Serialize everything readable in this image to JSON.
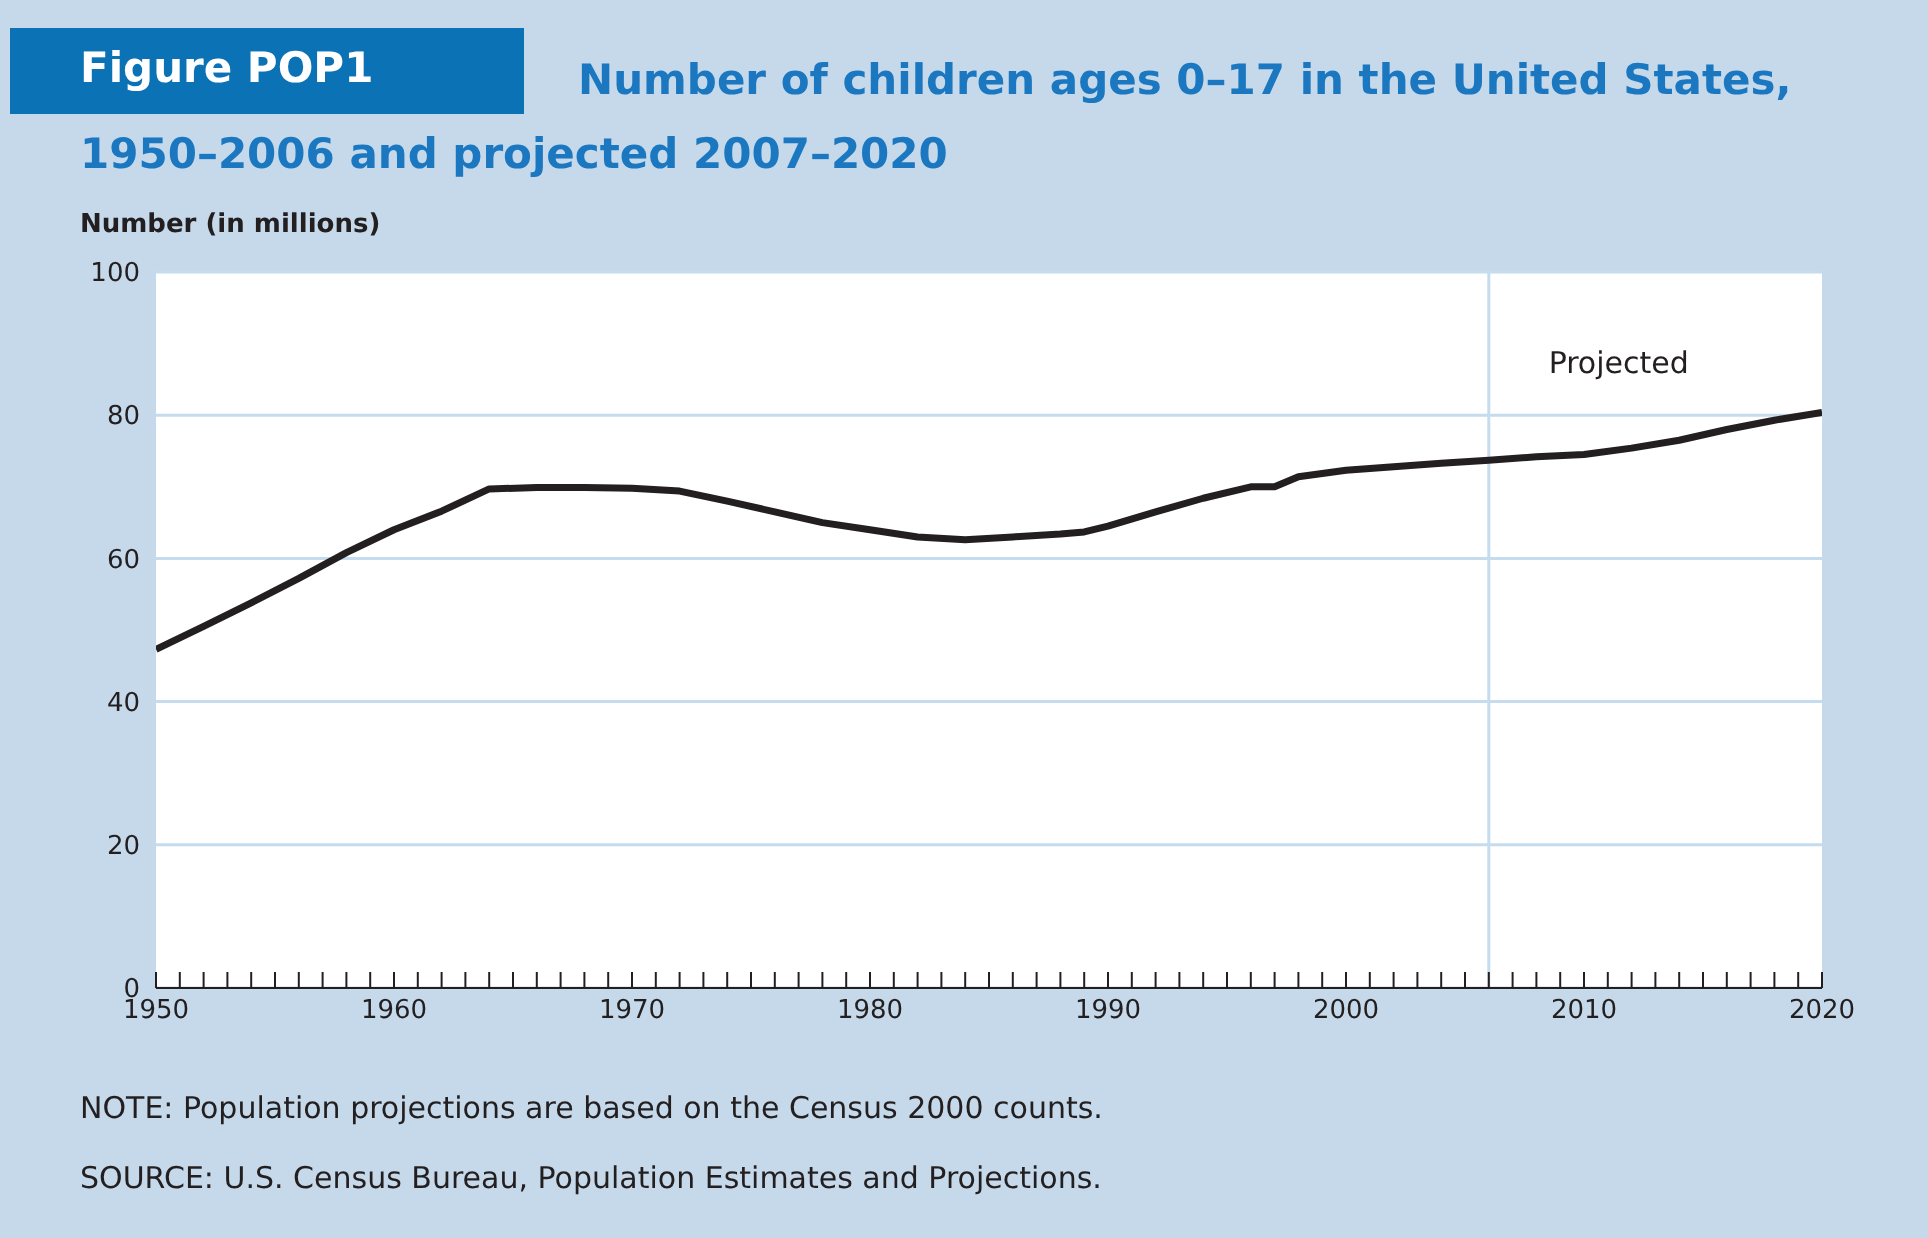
{
  "chart_data": {
    "type": "line",
    "title": "Number of children ages 0–17 in the United States, 1950–2006 and projected 2007–2020",
    "ylabel": "Number (in millions)",
    "annotations": [
      "Figure POP1",
      "NOTE: Population projections are based on the Census 2000 counts.",
      "SOURCE: U.S. Census Bureau, Population Estimates and Projections."
    ],
    "x": [
      1950,
      1952,
      1954,
      1956,
      1958,
      1960,
      1962,
      1964,
      1966,
      1968,
      1970,
      1972,
      1974,
      1976,
      1978,
      1980,
      1982,
      1984,
      1986,
      1988,
      1989,
      1990,
      1992,
      1994,
      1996,
      1997,
      1998,
      2000,
      2002,
      2004,
      2006,
      2008,
      2010,
      2012,
      2014,
      2016,
      2018,
      2020
    ],
    "series": [
      {
        "color": "#231f20",
        "values": [
          47.3,
          50.5,
          53.8,
          57.2,
          60.8,
          64.0,
          66.6,
          69.7,
          69.9,
          69.9,
          69.8,
          69.4,
          68.0,
          66.5,
          65.0,
          64.0,
          63.0,
          62.6,
          63.0,
          63.4,
          63.7,
          64.5,
          66.5,
          68.4,
          70.0,
          70.0,
          71.4,
          72.3,
          72.8,
          73.3,
          73.7,
          74.2,
          74.5,
          75.4,
          76.5,
          78.0,
          79.3,
          80.4
        ]
      }
    ],
    "xlim": [
      1950,
      2020
    ],
    "xticks": [
      1950,
      {
        "value": 1951,
        "label": null
      },
      {
        "value": 1952,
        "label": null
      },
      {
        "value": 1953,
        "label": null
      },
      {
        "value": 1954,
        "label": null
      },
      {
        "value": 1955,
        "label": null
      },
      {
        "value": 1956,
        "label": null
      },
      {
        "value": 1957,
        "label": null
      },
      {
        "value": 1958,
        "label": null
      },
      {
        "value": 1959,
        "label": null
      },
      1960,
      {
        "value": 1961,
        "label": null
      },
      {
        "value": 1962,
        "label": null
      },
      {
        "value": 1963,
        "label": null
      },
      {
        "value": 1964,
        "label": null
      },
      {
        "value": 1965,
        "label": null
      },
      {
        "value": 1966,
        "label": null
      },
      {
        "value": 1967,
        "label": null
      },
      {
        "value": 1968,
        "label": null
      },
      {
        "value": 1969,
        "label": null
      },
      1970,
      {
        "value": 1971,
        "label": null
      },
      {
        "value": 1972,
        "label": null
      },
      {
        "value": 1973,
        "label": null
      },
      {
        "value": 1974,
        "label": null
      },
      {
        "value": 1975,
        "label": null
      },
      {
        "value": 1976,
        "label": null
      },
      {
        "value": 1977,
        "label": null
      },
      {
        "value": 1978,
        "label": null
      },
      {
        "value": 1979,
        "label": null
      },
      1980,
      {
        "value": 1981,
        "label": null
      },
      {
        "value": 1982,
        "label": null
      },
      {
        "value": 1983,
        "label": null
      },
      {
        "value": 1984,
        "label": null
      },
      {
        "value": 1985,
        "label": null
      },
      {
        "value": 1986,
        "label": null
      },
      {
        "value": 1987,
        "label": null
      },
      {
        "value": 1988,
        "label": null
      },
      {
        "value": 1989,
        "label": null
      },
      1990,
      {
        "value": 1991,
        "label": null
      },
      {
        "value": 1992,
        "label": null
      },
      {
        "value": 1993,
        "label": null
      },
      {
        "value": 1994,
        "label": null
      },
      {
        "value": 1995,
        "label": null
      },
      {
        "value": 1996,
        "label": null
      },
      {
        "value": 1997,
        "label": null
      },
      {
        "value": 1998,
        "label": null
      },
      {
        "value": 1999,
        "label": null
      },
      2000,
      {
        "value": 2001,
        "label": null
      },
      {
        "value": 2002,
        "label": null
      },
      {
        "value": 2003,
        "label": null
      },
      {
        "value": 2004,
        "label": null
      },
      {
        "value": 2005,
        "label": null
      },
      {
        "value": 2006,
        "label": null
      },
      {
        "value": 2007,
        "label": null
      },
      {
        "value": 2008,
        "label": null
      },
      {
        "value": 2009,
        "label": null
      },
      2010,
      {
        "value": 2011,
        "label": null
      },
      {
        "value": 2012,
        "label": null
      },
      {
        "value": 2013,
        "label": null
      },
      {
        "value": 2014,
        "label": null
      },
      {
        "value": 2015,
        "label": null
      },
      {
        "value": 2016,
        "label": null
      },
      {
        "value": 2017,
        "label": null
      },
      {
        "value": 2018,
        "label": null
      },
      {
        "value": 2019,
        "label": null
      },
      2020
    ],
    "ylim": [
      0,
      100
    ],
    "yticks": [
      0,
      20,
      40,
      60,
      80,
      100
    ],
    "grid": "y",
    "marker": "none",
    "line_style": "solid",
    "legend": false,
    "ref_lines": [
      {
        "axis": "x",
        "value": 2006,
        "label": "Projected",
        "color": "#c5dcee"
      }
    ]
  }
}
